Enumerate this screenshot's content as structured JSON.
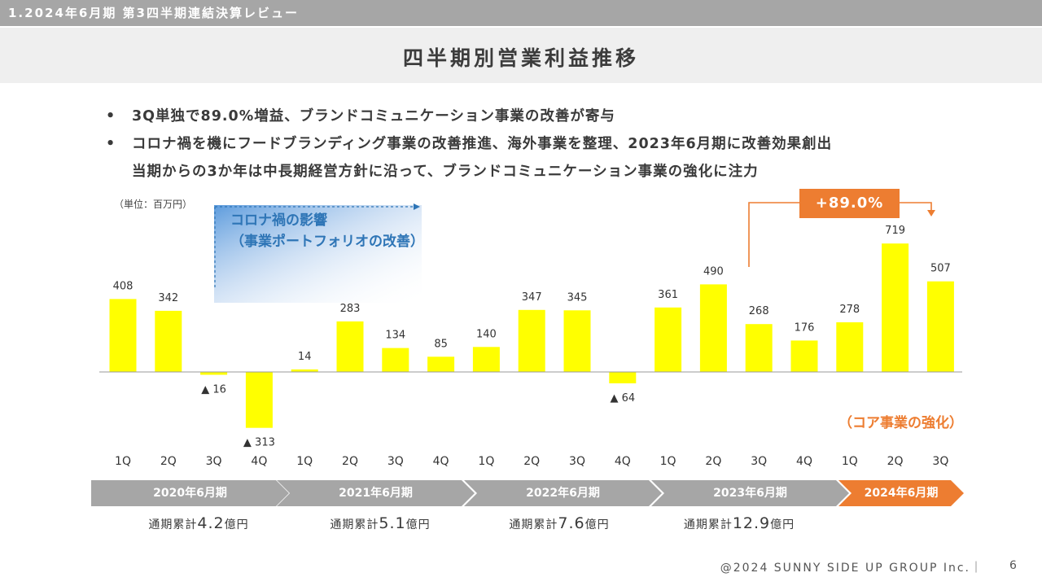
{
  "header": {
    "section": "1.2024年6月期 第3四半期連結決算レビュー"
  },
  "title": "四半期別営業利益推移",
  "bullets": [
    "3Q単独で89.0%増益、ブランドコミュニケーション事業の改善が寄与",
    "コロナ禍を機にフードブランディング事業の改善推進、海外事業を整理、2023年6月期に改善効果創出",
    "当期からの3か年は中長期経営方針に沿って、ブランドコミュニケーション事業の強化に注力"
  ],
  "unit_label": "（単位：百万円）",
  "annotations": {
    "covid_line1": "コロナ禍の影響",
    "covid_line2": "（事業ポートフォリオの改善）",
    "growth": "+89.0%",
    "core": "（コア事業の強化）"
  },
  "colors": {
    "bar": "#ffff00",
    "accent": "#ed7d31",
    "blue": "#2e75b6",
    "gray": "#a6a6a6"
  },
  "chart_data": {
    "type": "bar",
    "categories": [
      "1Q",
      "2Q",
      "3Q",
      "4Q",
      "1Q",
      "2Q",
      "3Q",
      "4Q",
      "1Q",
      "2Q",
      "3Q",
      "4Q",
      "1Q",
      "2Q",
      "3Q",
      "4Q",
      "1Q",
      "2Q",
      "3Q"
    ],
    "values": [
      408,
      342,
      -16,
      -313,
      14,
      283,
      134,
      85,
      140,
      347,
      345,
      -64,
      361,
      490,
      268,
      176,
      278,
      719,
      507
    ],
    "value_labels": [
      "408",
      "342",
      "▲ 16",
      "▲ 313",
      "14",
      "283",
      "134",
      "85",
      "140",
      "347",
      "345",
      "▲ 64",
      "361",
      "490",
      "268",
      "176",
      "278",
      "719",
      "507"
    ],
    "ylabel": "（単位：百万円）",
    "ylim": [
      -313,
      719
    ],
    "fiscal_years": [
      {
        "label": "2020年6月期",
        "cumulative_prefix": "通期累計",
        "cumulative_value": "4.2",
        "cumulative_unit": "億円"
      },
      {
        "label": "2021年6月期",
        "cumulative_prefix": "通期累計",
        "cumulative_value": "5.1",
        "cumulative_unit": "億円"
      },
      {
        "label": "2022年6月期",
        "cumulative_prefix": "通期累計",
        "cumulative_value": "7.6",
        "cumulative_unit": "億円"
      },
      {
        "label": "2023年6月期",
        "cumulative_prefix": "通期累計",
        "cumulative_value": "12.9",
        "cumulative_unit": "億円"
      },
      {
        "label": "2024年6月期"
      }
    ]
  },
  "footer": {
    "copyright": "@2024 SUNNY SIDE UP GROUP Inc.｜",
    "page": "6"
  }
}
